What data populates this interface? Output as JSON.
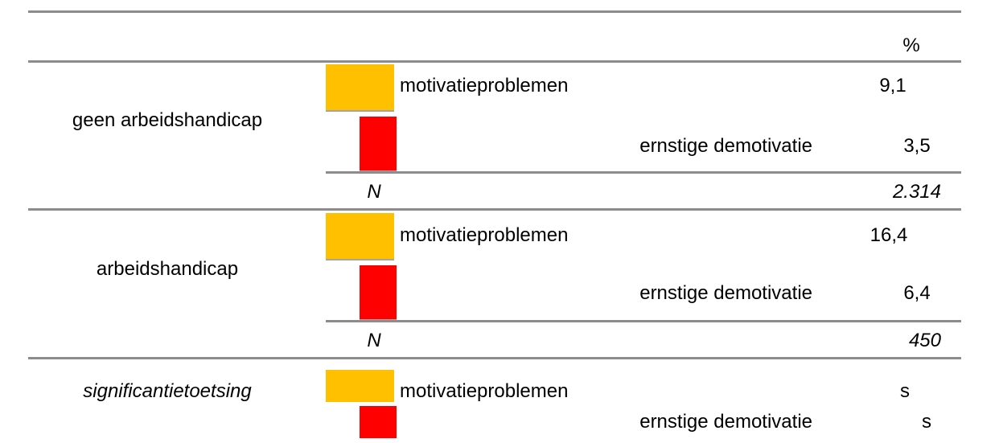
{
  "header": {
    "unit": "%"
  },
  "groups": [
    {
      "label": "geen arbeidshandicap",
      "rows": [
        {
          "label": "motivatieproblemen",
          "value": "9,1"
        },
        {
          "label": "ernstige demotivatie",
          "value": "3,5"
        }
      ],
      "n_label": "N",
      "n_value": "2.314"
    },
    {
      "label": "arbeidshandicap",
      "rows": [
        {
          "label": "motivatieproblemen",
          "value": "16,4"
        },
        {
          "label": "ernstige demotivatie",
          "value": "6,4"
        }
      ],
      "n_label": "N",
      "n_value": "450"
    },
    {
      "label": "significantietoetsing",
      "rows": [
        {
          "label": "motivatieproblemen",
          "value": "s"
        },
        {
          "label": "ernstige demotivatie",
          "value": "s"
        }
      ]
    }
  ]
}
